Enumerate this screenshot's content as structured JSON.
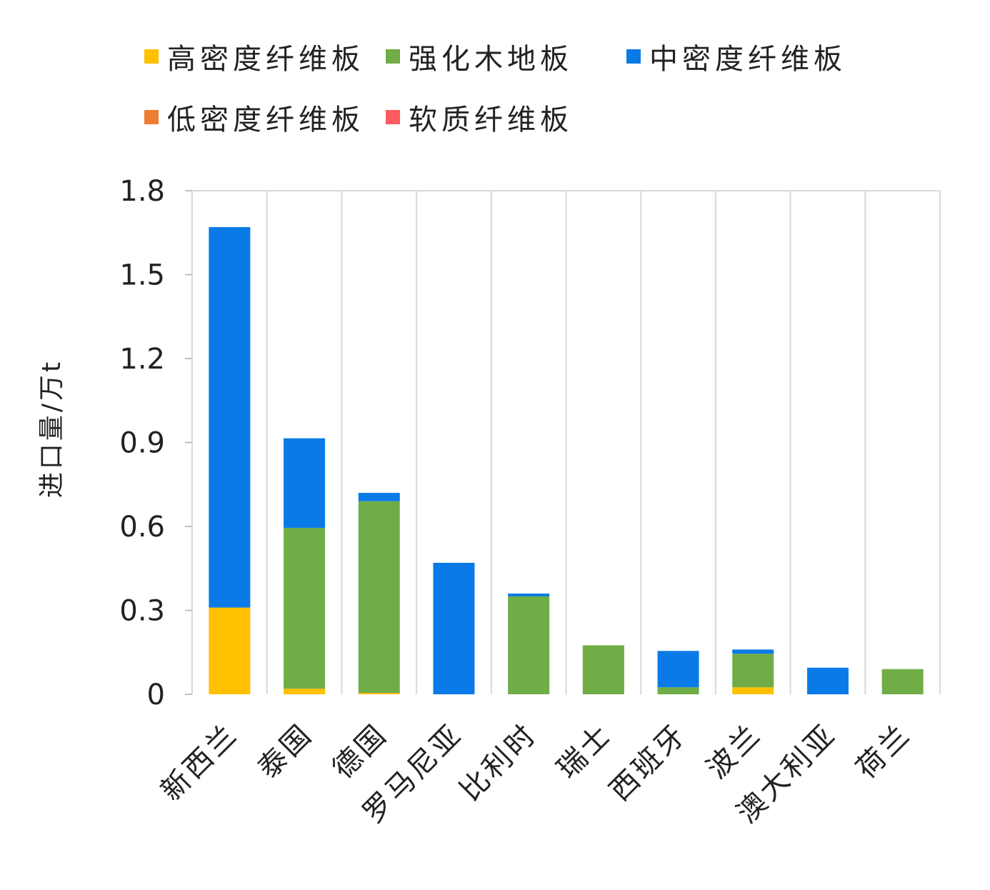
{
  "chart_data": {
    "type": "bar",
    "stacked": true,
    "title": "",
    "xlabel": "",
    "ylabel": "进口量/万t",
    "ylim": [
      0,
      1.8
    ],
    "yticks": [
      "0",
      "0.3",
      "0.6",
      "0.9",
      "1.2",
      "1.5",
      "1.8"
    ],
    "ytick_values": [
      0,
      0.3,
      0.6,
      0.9,
      1.2,
      1.5,
      1.8
    ],
    "grid": "vertical separators",
    "legend_position": "top",
    "categories": [
      "新西兰",
      "泰国",
      "德国",
      "罗马尼亚",
      "比利时",
      "瑞士",
      "西班牙",
      "波兰",
      "澳大利亚",
      "荷兰"
    ],
    "series": [
      {
        "name": "高密度纤维板",
        "color": "#FFC000",
        "values": [
          0.31,
          0.02,
          0.005,
          0,
          0,
          0,
          0,
          0.025,
          0,
          0
        ]
      },
      {
        "name": "强化木地板",
        "color": "#70AD47",
        "values": [
          0,
          0.575,
          0.685,
          0,
          0.35,
          0.175,
          0.025,
          0.12,
          0,
          0.09
        ]
      },
      {
        "name": "中密度纤维板",
        "color": "#0A7BE6",
        "values": [
          1.36,
          0.32,
          0.03,
          0.47,
          0.01,
          0,
          0.13,
          0.015,
          0.095,
          0
        ]
      },
      {
        "name": "低密度纤维板",
        "color": "#ED7D31",
        "values": [
          0,
          0,
          0,
          0,
          0,
          0,
          0,
          0,
          0,
          0
        ]
      },
      {
        "name": "软质纤维板",
        "color": "#FF5A5F",
        "values": [
          0,
          0,
          0,
          0,
          0,
          0,
          0,
          0,
          0,
          0
        ]
      }
    ]
  }
}
